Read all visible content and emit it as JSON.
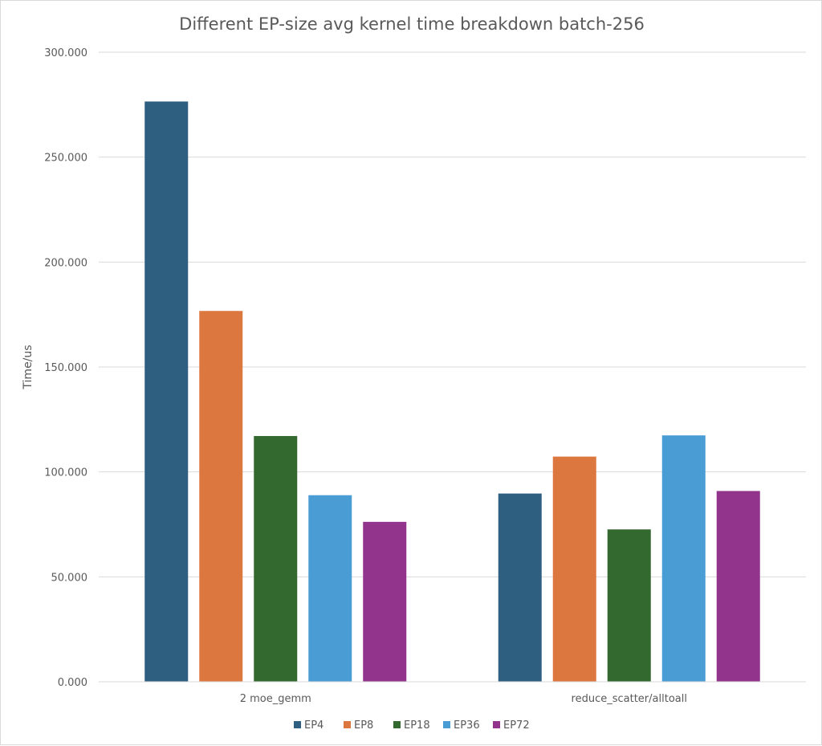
{
  "chart_data": {
    "type": "bar",
    "title": "Different EP-size avg kernel time breakdown batch-256",
    "xlabel": "",
    "ylabel": "Time/us",
    "ylim": [
      0,
      300
    ],
    "yticks": [
      0,
      50,
      100,
      150,
      200,
      250,
      300
    ],
    "ytick_labels": [
      "0.000",
      "50.000",
      "100.000",
      "150.000",
      "200.000",
      "250.000",
      "300.000"
    ],
    "grid": true,
    "legend_position": "bottom",
    "categories": [
      "2 moe_gemm",
      "reduce_scatter/alltoall"
    ],
    "series": [
      {
        "name": "EP4",
        "color": "#2e5f80",
        "values": [
          276.5,
          89.7
        ]
      },
      {
        "name": "EP8",
        "color": "#dc783f",
        "values": [
          176.7,
          107.3
        ]
      },
      {
        "name": "EP18",
        "color": "#33692e",
        "values": [
          117.1,
          72.6
        ]
      },
      {
        "name": "EP36",
        "color": "#4a9cd4",
        "values": [
          88.9,
          117.4
        ]
      },
      {
        "name": "EP72",
        "color": "#92338c",
        "values": [
          76.2,
          90.9
        ]
      }
    ]
  }
}
